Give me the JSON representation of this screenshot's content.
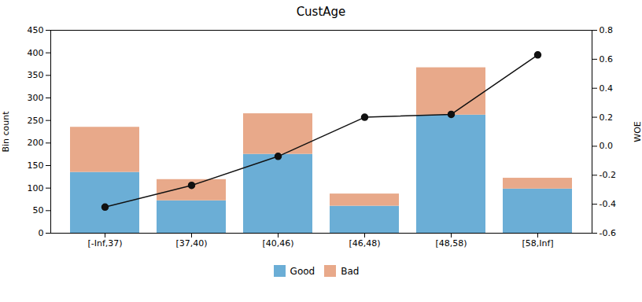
{
  "chart_data": {
    "type": "bar",
    "title": "CustAge",
    "categories": [
      "[-Inf,37)",
      "[37,40)",
      "[40,46)",
      "[46,48)",
      "[48,58)",
      "[58,Inf]"
    ],
    "stacked": true,
    "series": [
      {
        "name": "Good",
        "color": "#6baed6",
        "values": [
          135,
          72,
          175,
          60,
          262,
          98
        ]
      },
      {
        "name": "Bad",
        "color": "#e8a98a",
        "values": [
          100,
          47,
          90,
          27,
          105,
          24
        ]
      },
      {
        "type": "line",
        "axis": "y2",
        "color": "#111111",
        "marker": "o",
        "line_style": "solid",
        "values": [
          -0.42,
          -0.27,
          -0.07,
          0.2,
          0.22,
          0.63
        ]
      }
    ],
    "ylabel": "Bin count",
    "y2label": "WOE",
    "ylim": [
      0,
      450
    ],
    "yticks": [
      0,
      50,
      100,
      150,
      200,
      250,
      300,
      350,
      400,
      450
    ],
    "y2lim": [
      -0.6,
      0.8
    ],
    "y2ticks": [
      -0.6,
      -0.4,
      -0.2,
      {
        "value": 0.0,
        "label": "0.0"
      },
      0.2,
      0.4,
      0.6,
      0.8
    ],
    "grid": false,
    "legend": "bottom"
  }
}
